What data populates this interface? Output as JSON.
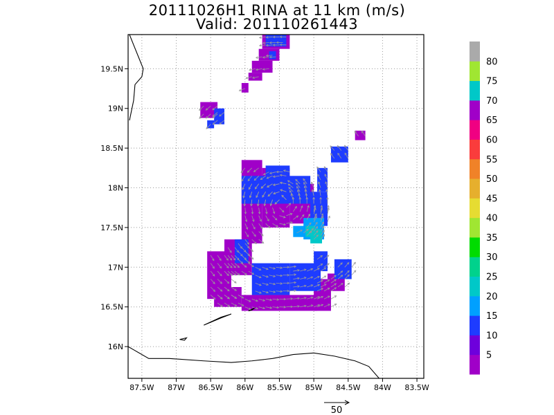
{
  "header": {
    "title_line1": "20111026H1 RINA at 11 km (m/s)",
    "title_line2": "Valid: 201110261443"
  },
  "chart_data": {
    "type": "heatmap",
    "title": "20111026H1 RINA at 11 km (m/s)",
    "subtitle": "Valid: 201110261443",
    "xlim": [
      -87.7,
      -83.4
    ],
    "ylim": [
      15.6,
      19.93
    ],
    "x_ticks": [
      {
        "value": -87.5,
        "label": "87.5W"
      },
      {
        "value": -87.0,
        "label": "87W"
      },
      {
        "value": -86.5,
        "label": "86.5W"
      },
      {
        "value": -86.0,
        "label": "86W"
      },
      {
        "value": -85.5,
        "label": "85.5W"
      },
      {
        "value": -85.0,
        "label": "85W"
      },
      {
        "value": -84.5,
        "label": "84.5W"
      },
      {
        "value": -84.0,
        "label": "84W"
      },
      {
        "value": -83.5,
        "label": "83.5W"
      }
    ],
    "y_ticks": [
      {
        "value": 16.0,
        "label": "16N"
      },
      {
        "value": 16.5,
        "label": "16.5N"
      },
      {
        "value": 17.0,
        "label": "17N"
      },
      {
        "value": 17.5,
        "label": "17.5N"
      },
      {
        "value": 18.0,
        "label": "18N"
      },
      {
        "value": 18.5,
        "label": "18.5N"
      },
      {
        "value": 19.0,
        "label": "19N"
      },
      {
        "value": 19.5,
        "label": "19.5N"
      }
    ],
    "grid": true,
    "cell_deg": 0.1,
    "colorbar": {
      "labels": [
        "5",
        "10",
        "15",
        "20",
        "25",
        "30",
        "35",
        "40",
        "45",
        "50",
        "55",
        "60",
        "65",
        "70",
        "75",
        "80"
      ],
      "colors": [
        "#a000c8",
        "#6e00dc",
        "#1e3cff",
        "#00a0ff",
        "#00c8c8",
        "#00d28c",
        "#00dc00",
        "#a0e632",
        "#e6dc32",
        "#e6af2d",
        "#f08228",
        "#fa3c3c",
        "#f00082",
        "#a000c8",
        "#00c8c8",
        "#a0e632",
        "#aaaaaa"
      ]
    },
    "reference_vector": {
      "label": "50",
      "value": 50
    },
    "regions": [
      {
        "name": "north-strip",
        "level": 1,
        "rects": [
          [
            -85.75,
            -85.35,
            19.75,
            19.93
          ],
          [
            -85.8,
            -85.5,
            19.6,
            19.75
          ],
          [
            -85.9,
            -85.6,
            19.45,
            19.6
          ],
          [
            -85.95,
            -85.75,
            19.35,
            19.45
          ],
          [
            -86.05,
            -85.95,
            19.2,
            19.32
          ]
        ]
      },
      {
        "name": "north-strip-inner",
        "level": 2,
        "rects": [
          [
            -85.7,
            -85.4,
            19.78,
            19.93
          ],
          [
            -85.65,
            -85.55,
            19.62,
            19.72
          ]
        ]
      },
      {
        "name": "west-blob",
        "level": 1,
        "rects": [
          [
            -86.65,
            -86.4,
            18.88,
            19.08
          ]
        ]
      },
      {
        "name": "west-blob-inner",
        "level": 2,
        "rects": [
          [
            -86.45,
            -86.3,
            18.8,
            19.0
          ],
          [
            -86.55,
            -86.45,
            18.75,
            18.85
          ]
        ]
      },
      {
        "name": "east-blob",
        "level": 2,
        "rects": [
          [
            -84.75,
            -84.5,
            18.32,
            18.52
          ]
        ]
      },
      {
        "name": "east-small",
        "level": 1,
        "rects": [
          [
            -84.4,
            -84.25,
            18.6,
            18.72
          ]
        ]
      },
      {
        "name": "main-purple",
        "level": 1,
        "rects": [
          [
            -86.05,
            -85.75,
            17.3,
            18.35
          ],
          [
            -85.75,
            -85.35,
            17.5,
            18.25
          ],
          [
            -85.35,
            -85.0,
            17.55,
            18.05
          ],
          [
            -86.3,
            -85.9,
            16.9,
            17.35
          ],
          [
            -86.55,
            -86.2,
            16.6,
            17.2
          ],
          [
            -86.45,
            -86.05,
            16.5,
            16.75
          ],
          [
            -86.05,
            -84.95,
            16.45,
            16.65
          ],
          [
            -85.0,
            -84.75,
            16.45,
            16.85
          ],
          [
            -84.8,
            -84.55,
            16.7,
            16.92
          ]
        ]
      },
      {
        "name": "main-blue",
        "level": 2,
        "rects": [
          [
            -86.05,
            -85.05,
            17.8,
            18.15
          ],
          [
            -85.7,
            -85.35,
            18.15,
            18.28
          ],
          [
            -85.05,
            -84.8,
            17.65,
            17.95
          ],
          [
            -84.95,
            -84.8,
            17.95,
            18.25
          ],
          [
            -85.05,
            -84.8,
            17.52,
            17.7
          ],
          [
            -85.9,
            -85.35,
            16.65,
            17.05
          ],
          [
            -85.35,
            -84.9,
            16.7,
            17.05
          ],
          [
            -86.15,
            -85.95,
            17.05,
            17.35
          ],
          [
            -84.7,
            -84.45,
            16.85,
            17.1
          ],
          [
            -85.0,
            -84.8,
            16.95,
            17.2
          ]
        ]
      },
      {
        "name": "main-light-blue",
        "level": 3,
        "rects": [
          [
            -85.15,
            -84.85,
            17.35,
            17.62
          ],
          [
            -85.3,
            -85.1,
            17.38,
            17.52
          ]
        ]
      },
      {
        "name": "main-cyan",
        "level": 4,
        "rects": [
          [
            -85.05,
            -84.88,
            17.3,
            17.48
          ],
          [
            -85.12,
            -84.98,
            17.38,
            17.52
          ]
        ]
      }
    ],
    "coastlines": [
      {
        "name": "yucatan-coast",
        "points": [
          [
            -87.68,
            19.93
          ],
          [
            -87.62,
            19.8
          ],
          [
            -87.55,
            19.65
          ],
          [
            -87.48,
            19.5
          ],
          [
            -87.5,
            19.4
          ],
          [
            -87.6,
            19.3
          ],
          [
            -87.62,
            19.1
          ],
          [
            -87.68,
            18.85
          ]
        ]
      },
      {
        "name": "honduras-coast",
        "points": [
          [
            -87.7,
            16.0
          ],
          [
            -87.6,
            15.95
          ],
          [
            -87.4,
            15.85
          ],
          [
            -87.1,
            15.85
          ],
          [
            -86.6,
            15.82
          ],
          [
            -86.2,
            15.8
          ],
          [
            -85.9,
            15.82
          ],
          [
            -85.6,
            15.85
          ],
          [
            -85.3,
            15.9
          ],
          [
            -85.0,
            15.92
          ],
          [
            -84.7,
            15.88
          ],
          [
            -84.4,
            15.82
          ],
          [
            -84.2,
            15.75
          ],
          [
            -84.0,
            15.55
          ]
        ]
      },
      {
        "name": "roatan-island",
        "points": [
          [
            -86.6,
            16.27
          ],
          [
            -86.35,
            16.37
          ],
          [
            -86.2,
            16.41
          ],
          [
            -86.35,
            16.36
          ],
          [
            -86.6,
            16.27
          ]
        ]
      },
      {
        "name": "guanaja-island",
        "points": [
          [
            -85.95,
            16.45
          ],
          [
            -85.85,
            16.49
          ],
          [
            -85.9,
            16.46
          ],
          [
            -85.95,
            16.45
          ]
        ]
      },
      {
        "name": "utila-island",
        "points": [
          [
            -86.95,
            16.09
          ],
          [
            -86.85,
            16.11
          ],
          [
            -86.88,
            16.08
          ],
          [
            -86.95,
            16.09
          ]
        ]
      }
    ]
  }
}
